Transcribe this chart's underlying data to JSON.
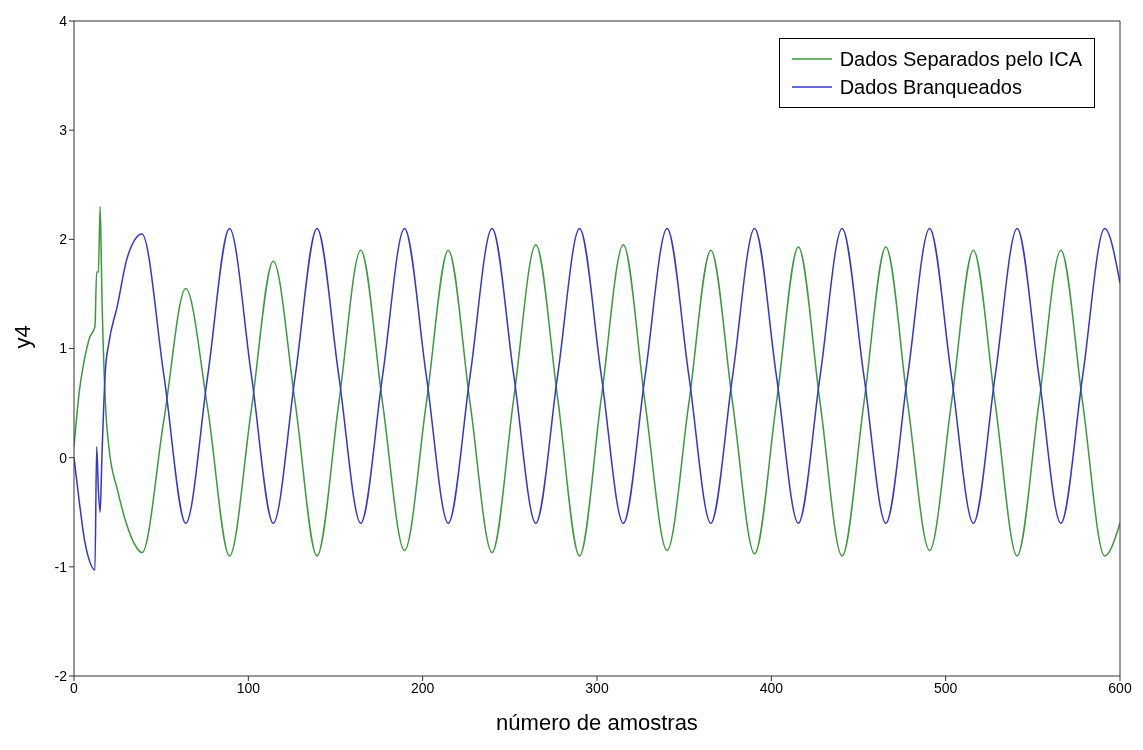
{
  "chart_data": {
    "type": "line",
    "xlabel": "número de amostras",
    "ylabel": "y4",
    "x": [
      0,
      3,
      6,
      9,
      12,
      13,
      14,
      15,
      16,
      18,
      20,
      25,
      30,
      35,
      39,
      51.6,
      64.1,
      76.7,
      89.2,
      101.8,
      114.3,
      126.9,
      139.4,
      151.9,
      164.5,
      177.0,
      189.6,
      202.1,
      214.7,
      227.2,
      239.8,
      252.3,
      264.9,
      277.4,
      290.0,
      302.5,
      315.1,
      327.6,
      340.2,
      352.7,
      365.3,
      377.8,
      390.4,
      402.9,
      415.5,
      428.0,
      440.6,
      453.1,
      465.7,
      478.2,
      490.8,
      503.3,
      515.9,
      528.4,
      541.0,
      553.5,
      566.1,
      578.6,
      591.2,
      600
    ],
    "series": [
      {
        "name": "Dados Separados pelo ICA",
        "color": "#3c9a3c",
        "values": [
          0.1,
          0.6,
          0.9,
          1.1,
          1.2,
          1.7,
          1.7,
          2.3,
          1.5,
          0.5,
          0.1,
          -0.3,
          -0.6,
          -0.8,
          -0.87,
          0.35,
          1.55,
          0.45,
          -0.9,
          0.45,
          1.8,
          0.5,
          -0.9,
          0.5,
          1.9,
          0.5,
          -0.85,
          0.5,
          1.9,
          0.5,
          -0.87,
          0.55,
          1.95,
          0.55,
          -0.9,
          0.55,
          1.95,
          0.5,
          -0.85,
          0.5,
          1.9,
          0.5,
          -0.88,
          0.5,
          1.93,
          0.5,
          -0.9,
          0.5,
          1.93,
          0.5,
          -0.85,
          0.5,
          1.9,
          0.5,
          -0.9,
          0.5,
          1.9,
          0.5,
          -0.9,
          -0.6
        ]
      },
      {
        "name": "Dados Branqueados",
        "color": "#3535d0",
        "values": [
          0,
          -0.4,
          -0.75,
          -0.95,
          -1.03,
          0.1,
          -0.3,
          -0.5,
          0,
          0.8,
          1.05,
          1.4,
          1.8,
          2.0,
          2.05,
          0.75,
          -0.6,
          0.75,
          2.1,
          0.75,
          -0.6,
          0.75,
          2.1,
          0.75,
          -0.6,
          0.75,
          2.1,
          0.75,
          -0.6,
          0.75,
          2.1,
          0.75,
          -0.6,
          0.75,
          2.1,
          0.75,
          -0.6,
          0.75,
          2.1,
          0.75,
          -0.6,
          0.75,
          2.1,
          0.75,
          -0.6,
          0.75,
          2.1,
          0.75,
          -0.6,
          0.75,
          2.1,
          0.75,
          -0.6,
          0.75,
          2.1,
          0.75,
          -0.6,
          0.75,
          2.1,
          1.6
        ]
      }
    ],
    "xlim": [
      0,
      600
    ],
    "xticks": [
      0,
      100,
      200,
      300,
      400,
      500,
      600
    ],
    "ylim": [
      -2,
      4
    ],
    "yticks": [
      -2,
      -1,
      0,
      1,
      2,
      3,
      4
    ],
    "grid": false,
    "legend": "top right",
    "marker": "none",
    "line_style": "solid"
  }
}
